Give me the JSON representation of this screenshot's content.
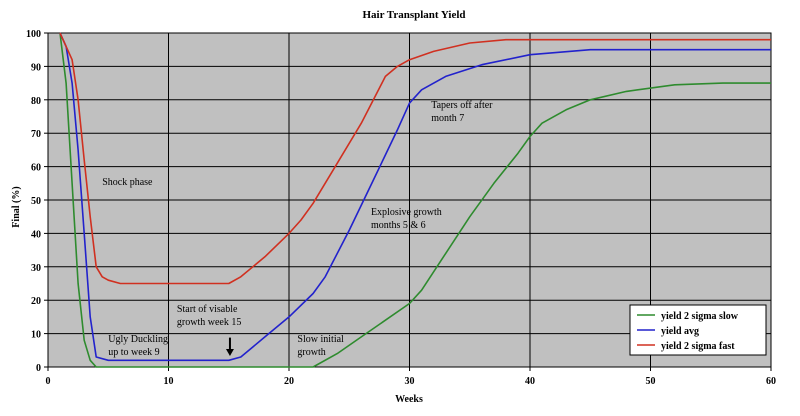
{
  "chart_data": {
    "type": "line",
    "title": "Hair Transplant Yield",
    "xlabel": "Weeks",
    "ylabel": "Final (%)",
    "xlim": [
      0,
      60
    ],
    "ylim": [
      0,
      100
    ],
    "x_ticks": [
      0,
      10,
      20,
      30,
      40,
      50,
      60
    ],
    "y_ticks": [
      0,
      10,
      20,
      30,
      40,
      50,
      60,
      70,
      80,
      90,
      100
    ],
    "grid": true,
    "plot_background": "#c0c0c0",
    "legend_position": "bottom-right",
    "series": [
      {
        "name": "yield 2 sigma slow",
        "color": "#2e8b2e",
        "x": [
          1,
          1.5,
          2,
          2.5,
          3,
          3.5,
          4,
          22,
          24,
          26,
          28,
          30,
          31,
          33,
          35,
          37,
          39,
          40,
          41,
          43,
          45,
          48,
          52,
          56,
          60
        ],
        "y": [
          100,
          85,
          55,
          25,
          8,
          2,
          0,
          0,
          4,
          9,
          14,
          19,
          23,
          34,
          45,
          55,
          64,
          69,
          73,
          77,
          80,
          82.5,
          84.5,
          85,
          85
        ]
      },
      {
        "name": "yield avg",
        "color": "#2222cc",
        "x": [
          1,
          1.5,
          2,
          2.5,
          3,
          3.5,
          4,
          5,
          8,
          12,
          15,
          16,
          18,
          20,
          22,
          23,
          25,
          27,
          29,
          30,
          31,
          33,
          36,
          40,
          45,
          50,
          55,
          60
        ],
        "y": [
          100,
          96,
          85,
          65,
          40,
          15,
          3,
          2,
          2,
          2,
          2,
          3,
          9,
          15,
          22,
          27,
          41,
          56,
          71,
          79,
          83,
          87,
          90.5,
          93.5,
          95,
          95,
          95,
          95
        ]
      },
      {
        "name": "yield 2 sigma fast",
        "color": "#d03020",
        "x": [
          1,
          2,
          2.5,
          3,
          3.5,
          4,
          4.5,
          5,
          6,
          10,
          15,
          16,
          18,
          20,
          21,
          22,
          24,
          26,
          27,
          28,
          29,
          30,
          32,
          35,
          38,
          40,
          45,
          50,
          55,
          60
        ],
        "y": [
          100,
          92,
          80,
          62,
          45,
          30,
          27,
          26,
          25,
          25,
          25,
          27,
          33,
          40,
          44,
          49,
          61,
          73,
          80,
          87,
          90,
          92,
          94.5,
          97,
          98,
          98,
          98,
          98,
          98,
          98
        ]
      }
    ],
    "annotations": [
      {
        "lines": [
          "Shock phase"
        ],
        "x": 4.5,
        "y": 54.5
      },
      {
        "lines": [
          "Ugly Duckling",
          "up to week 9"
        ],
        "x": 5,
        "y": 7.5
      },
      {
        "lines": [
          "Start of visable",
          "growth week 15"
        ],
        "x": 10.7,
        "y": 16.5
      },
      {
        "lines": [
          "Slow initial",
          "growth"
        ],
        "x": 20.7,
        "y": 7.5
      },
      {
        "lines": [
          "Explosive growth",
          "months 5 & 6"
        ],
        "x": 26.8,
        "y": 45.5
      },
      {
        "lines": [
          "Tapers off after",
          "month 7"
        ],
        "x": 31.8,
        "y": 77.5
      }
    ],
    "arrow": {
      "from": [
        15.1,
        8.8
      ],
      "to": [
        15.1,
        3.3
      ]
    }
  }
}
